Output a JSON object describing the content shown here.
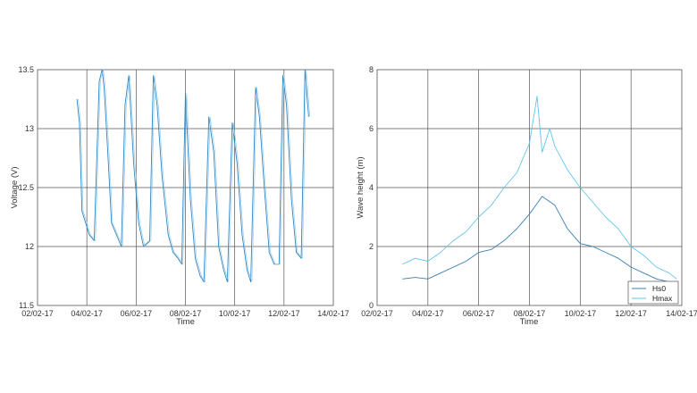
{
  "chart_data": [
    {
      "type": "line",
      "xlabel": "Time",
      "ylabel": "Voltage (V)",
      "x_tick_labels": [
        "02/02-17",
        "04/02-17",
        "06/02-17",
        "08/02-17",
        "10/02-17",
        "12/02-17",
        "14/02-17"
      ],
      "y_tick_labels": [
        "11.5",
        "12",
        "12.5",
        "13",
        "13.5"
      ],
      "xlim": [
        0,
        12
      ],
      "ylim": [
        11.5,
        13.5
      ],
      "grid": true,
      "colors": {
        "series": "#2f86c2",
        "series_light": "#8cc8e8"
      },
      "series": [
        {
          "x": [
            1.6,
            1.7,
            1.8,
            1.95,
            2.1,
            2.3,
            2.5,
            2.62,
            2.7,
            2.85,
            3.0,
            3.2,
            3.4,
            3.55,
            3.7,
            3.9,
            4.1,
            4.3,
            4.55,
            4.7,
            4.85,
            5.05,
            5.3,
            5.5,
            5.7,
            5.85,
            6.0,
            6.2,
            6.4,
            6.6,
            6.75,
            6.95,
            7.15,
            7.35,
            7.55,
            7.7,
            7.9,
            8.1,
            8.3,
            8.5,
            8.65,
            8.85,
            9.0,
            9.2,
            9.4,
            9.6,
            9.8,
            9.95,
            10.1,
            10.3,
            10.5,
            10.7,
            10.85,
            11.0
          ],
          "y": [
            13.25,
            13.05,
            12.3,
            12.2,
            12.1,
            12.05,
            13.4,
            13.5,
            13.35,
            12.8,
            12.2,
            12.1,
            12.0,
            13.2,
            13.45,
            12.7,
            12.2,
            12.0,
            12.05,
            13.45,
            13.2,
            12.6,
            12.1,
            11.95,
            11.9,
            11.85,
            13.3,
            12.4,
            11.9,
            11.75,
            11.7,
            13.1,
            12.8,
            12.0,
            11.8,
            11.7,
            13.05,
            12.7,
            12.1,
            11.8,
            11.7,
            13.35,
            13.1,
            12.5,
            11.95,
            11.85,
            11.85,
            13.45,
            13.2,
            12.4,
            11.95,
            11.9,
            13.5,
            13.1
          ]
        }
      ]
    },
    {
      "type": "line",
      "xlabel": "Time",
      "ylabel": "Wave height (m)",
      "x_tick_labels": [
        "02/02-17",
        "04/02-17",
        "06/02-17",
        "08/02-17",
        "10/02-17",
        "12/02-17",
        "14/02-17"
      ],
      "y_tick_labels": [
        "0",
        "2",
        "4",
        "6",
        "8"
      ],
      "xlim": [
        0,
        12
      ],
      "ylim": [
        0,
        8
      ],
      "grid": true,
      "legend": "bottom-right",
      "colors": {
        "Hs0": "#3a7fb0",
        "Hmax": "#63c5ea"
      },
      "series": [
        {
          "name": "Hs0",
          "x": [
            1.0,
            1.5,
            2.0,
            2.5,
            3.0,
            3.5,
            4.0,
            4.5,
            5.0,
            5.5,
            6.0,
            6.5,
            7.0,
            7.5,
            8.0,
            8.5,
            9.0,
            9.5,
            10.0,
            10.5,
            11.0,
            11.5,
            11.8
          ],
          "y": [
            0.9,
            0.95,
            0.9,
            1.1,
            1.3,
            1.5,
            1.8,
            1.9,
            2.2,
            2.6,
            3.1,
            3.7,
            3.4,
            2.6,
            2.1,
            2.0,
            1.8,
            1.6,
            1.3,
            1.1,
            0.9,
            0.8,
            0.6
          ]
        },
        {
          "name": "Hmax",
          "x": [
            1.0,
            1.5,
            2.0,
            2.5,
            3.0,
            3.5,
            4.0,
            4.5,
            5.0,
            5.5,
            6.0,
            6.3,
            6.5,
            6.8,
            7.0,
            7.5,
            8.0,
            8.5,
            9.0,
            9.5,
            10.0,
            10.5,
            11.0,
            11.5,
            11.8
          ],
          "y": [
            1.4,
            1.6,
            1.5,
            1.8,
            2.2,
            2.5,
            3.0,
            3.4,
            4.0,
            4.5,
            5.5,
            7.1,
            5.2,
            6.0,
            5.4,
            4.6,
            4.0,
            3.5,
            3.0,
            2.6,
            2.0,
            1.7,
            1.3,
            1.1,
            0.9
          ]
        }
      ]
    }
  ]
}
